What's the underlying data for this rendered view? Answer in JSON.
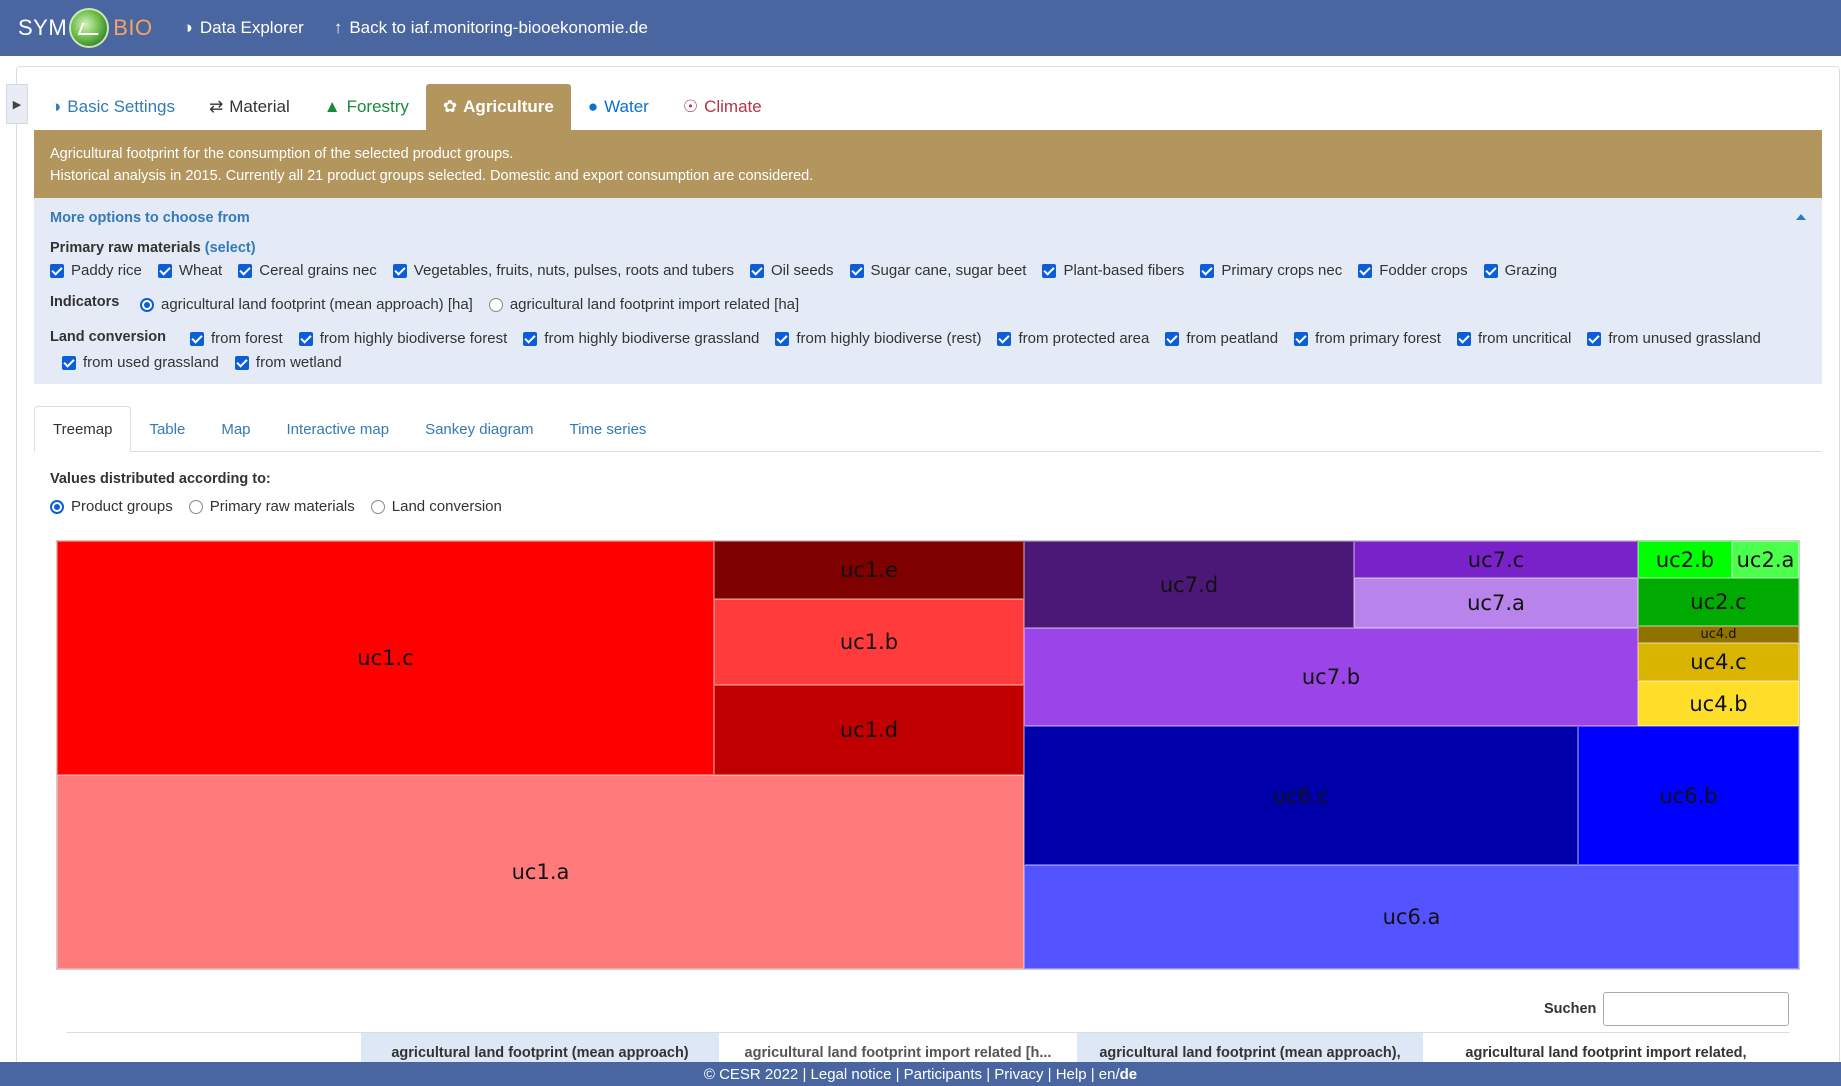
{
  "navbar": {
    "brand_left": "SYM",
    "brand_right": "BIO",
    "links": [
      {
        "icon": "binoculars-icon",
        "label": "Data Explorer"
      },
      {
        "icon": "arrow-up-icon",
        "label": "Back to iaf.monitoring-biooekonomie.de"
      }
    ]
  },
  "main_tabs": [
    {
      "icon": "binoculars-icon",
      "label": "Basic Settings",
      "color": "#337ab7"
    },
    {
      "icon": "shuffle-icon",
      "label": "Material",
      "color": "#333333"
    },
    {
      "icon": "tree-icon",
      "label": "Forestry",
      "color": "#1a8a3a"
    },
    {
      "icon": "leaf-icon",
      "label": "Agriculture",
      "color": "#ffffff",
      "active": true
    },
    {
      "icon": "drop-icon",
      "label": "Water",
      "color": "#0b6fd1"
    },
    {
      "icon": "globe-icon",
      "label": "Climate",
      "color": "#b0374a"
    }
  ],
  "info": {
    "line1": "Agricultural footprint for the consumption of the selected product groups.",
    "line2": "Historical analysis in 2015. Currently all 21 product groups selected. Domestic and export consumption are considered."
  },
  "options": {
    "heading": "More options to choose from",
    "primary_raw_materials": {
      "label": "Primary raw materials",
      "select": "(select)",
      "items": [
        "Paddy rice",
        "Wheat",
        "Cereal grains nec",
        "Vegetables, fruits, nuts, pulses, roots and tubers",
        "Oil seeds",
        "Sugar cane, sugar beet",
        "Plant-based fibers",
        "Primary crops nec",
        "Fodder crops",
        "Grazing"
      ]
    },
    "indicators": {
      "label": "Indicators",
      "items": [
        {
          "label": "agricultural land footprint (mean approach) [ha]",
          "selected": true
        },
        {
          "label": "agricultural land footprint import related [ha]",
          "selected": false
        }
      ]
    },
    "land_conversion": {
      "label": "Land conversion",
      "items": [
        "from forest",
        "from highly biodiverse forest",
        "from highly biodiverse grassland",
        "from highly biodiverse (rest)",
        "from protected area",
        "from peatland",
        "from primary forest",
        "from uncritical",
        "from unused grassland",
        "from used grassland",
        "from wetland"
      ]
    }
  },
  "sub_tabs": [
    "Treemap",
    "Table",
    "Map",
    "Interactive map",
    "Sankey diagram",
    "Time series"
  ],
  "distribution": {
    "label": "Values distributed according to:",
    "options": [
      {
        "label": "Product groups",
        "selected": true
      },
      {
        "label": "Primary raw materials",
        "selected": false
      },
      {
        "label": "Land conversion",
        "selected": false
      }
    ]
  },
  "treemap": {
    "tiles": [
      {
        "label": "uc1.c",
        "color": "#ff0000"
      },
      {
        "label": "uc1.e",
        "color": "#7f0000"
      },
      {
        "label": "uc1.b",
        "color": "#ff3b3b"
      },
      {
        "label": "uc1.d",
        "color": "#c00000"
      },
      {
        "label": "uc1.a",
        "color": "#ff7b7b"
      },
      {
        "label": "uc7.d",
        "color": "#4b1878"
      },
      {
        "label": "uc7.c",
        "color": "#7a22c9"
      },
      {
        "label": "uc7.a",
        "color": "#b983ec"
      },
      {
        "label": "uc7.b",
        "color": "#9b44e8"
      },
      {
        "label": "uc2.b",
        "color": "#00ff00"
      },
      {
        "label": "uc2.a",
        "color": "#4dff4d"
      },
      {
        "label": "uc2.c",
        "color": "#00aa00"
      },
      {
        "label": "uc4.d",
        "color": "#8f7200"
      },
      {
        "label": "uc4.c",
        "color": "#d9b400"
      },
      {
        "label": "uc4.b",
        "color": "#ffde2a"
      },
      {
        "label": "uc6.c",
        "color": "#0000aa"
      },
      {
        "label": "uc6.b",
        "color": "#0000ff"
      },
      {
        "label": "uc6.a",
        "color": "#5353ff"
      }
    ]
  },
  "search": {
    "label": "Suchen",
    "value": ""
  },
  "table_headers": [
    "",
    "agricultural land footprint (mean approach)",
    "agricultural land footprint import related [h...",
    "agricultural land footprint (mean approach),",
    "agricultural land footprint import related,"
  ],
  "footer": {
    "links": [
      "© CESR 2022",
      "Legal notice",
      "Participants",
      "Privacy",
      "Help"
    ],
    "lang_en": "en",
    "lang_sep": "/",
    "lang_de": "de"
  }
}
